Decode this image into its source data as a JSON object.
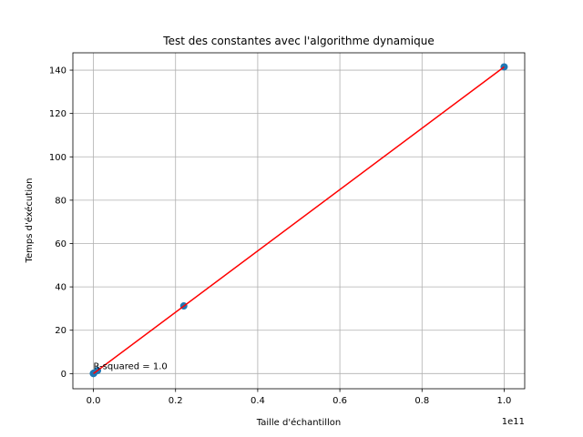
{
  "chart_data": {
    "type": "scatter",
    "title": "Test des constantes avec l'algorithme dynamique",
    "xlabel": "Taille d'échantillon",
    "ylabel": "Temps d'éxécution",
    "x_offset_label": "1e11",
    "xlim": [
      -0.05,
      1.05
    ],
    "ylim": [
      -7,
      148
    ],
    "x_scale_factor": 100000000000.0,
    "xticks": [
      0.0,
      0.2,
      0.4,
      0.6,
      0.8,
      1.0
    ],
    "xtick_labels": [
      "0.0",
      "0.2",
      "0.4",
      "0.6",
      "0.8",
      "1.0"
    ],
    "yticks": [
      0,
      20,
      40,
      60,
      80,
      100,
      120,
      140
    ],
    "ytick_labels": [
      "0",
      "20",
      "40",
      "60",
      "80",
      "100",
      "120",
      "140"
    ],
    "grid": true,
    "series": [
      {
        "kind": "scatter",
        "color": "#1f77b4",
        "x": [
          0.0,
          0.0001,
          0.001,
          0.01,
          0.22,
          1.0
        ],
        "y": [
          0.0,
          0.1,
          0.2,
          1.4,
          31.2,
          141.5
        ]
      },
      {
        "kind": "line",
        "color": "#ff0000",
        "x": [
          0.0,
          1.0
        ],
        "y": [
          0.0,
          141.5
        ]
      }
    ],
    "annotation": {
      "text": "R-squared = 1.0",
      "x": 0.0,
      "y": 2.0
    }
  }
}
